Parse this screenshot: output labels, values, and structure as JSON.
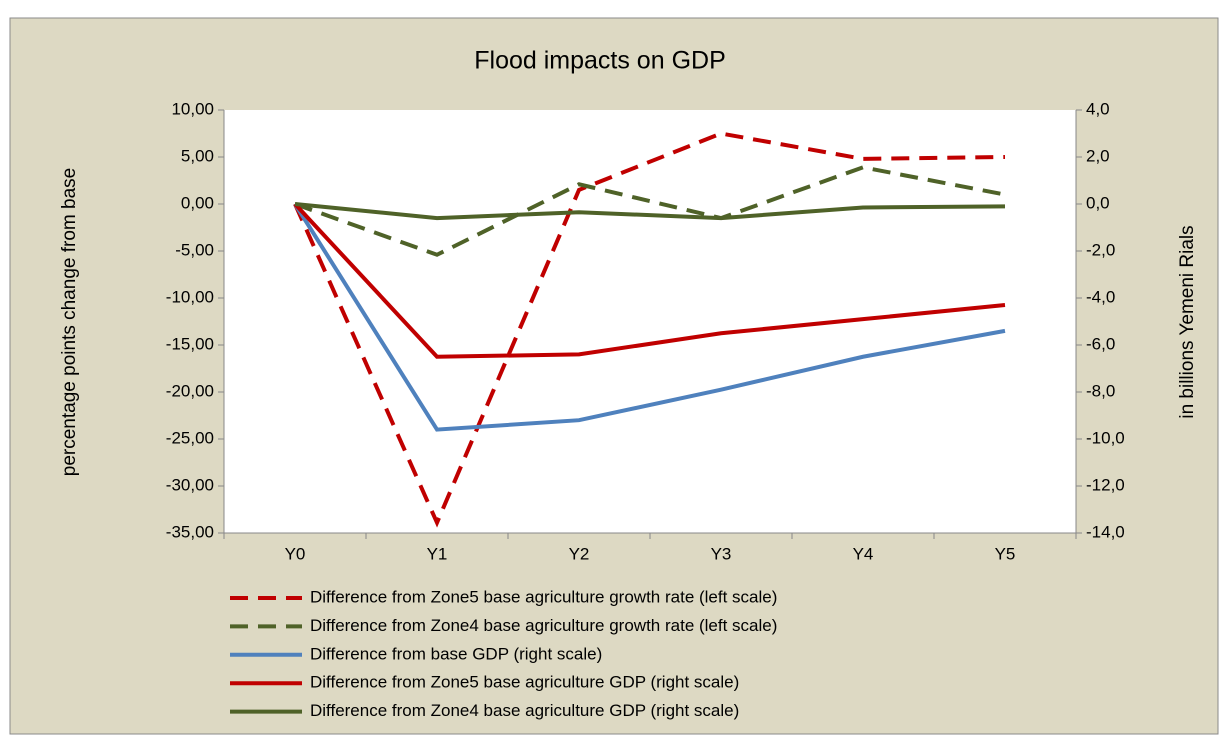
{
  "chart_data": {
    "type": "line",
    "title": "Flood impacts on GDP",
    "ylabel": "percentage points change from base",
    "y2label": "in billions Yemeni Rials",
    "categories": [
      "Y0",
      "Y1",
      "Y2",
      "Y3",
      "Y4",
      "Y5"
    ],
    "ylim": [
      -35,
      10
    ],
    "yticks": [
      {
        "value": 10,
        "label": "10,00"
      },
      {
        "value": 5,
        "label": "5,00"
      },
      {
        "value": 0,
        "label": "0,00"
      },
      {
        "value": -5,
        "label": "-5,00"
      },
      {
        "value": -10,
        "label": "-10,00"
      },
      {
        "value": -15,
        "label": "-15,00"
      },
      {
        "value": -20,
        "label": "-20,00"
      },
      {
        "value": -25,
        "label": "-25,00"
      },
      {
        "value": -30,
        "label": "-30,00"
      },
      {
        "value": -35,
        "label": "-35,00"
      }
    ],
    "y2lim": [
      -14,
      4
    ],
    "y2ticks": [
      {
        "value": 4,
        "label": "4,0"
      },
      {
        "value": 2,
        "label": "2,0"
      },
      {
        "value": 0,
        "label": "0,0"
      },
      {
        "value": -2,
        "label": "-2,0"
      },
      {
        "value": -4,
        "label": "-4,0"
      },
      {
        "value": -6,
        "label": "-6,0"
      },
      {
        "value": -8,
        "label": "-8,0"
      },
      {
        "value": -10,
        "label": "-10,0"
      },
      {
        "value": -12,
        "label": "-12,0"
      },
      {
        "value": -14,
        "label": "-14,0"
      }
    ],
    "series": [
      {
        "name": "Difference from Zone5 base agriculture growth rate (left scale)",
        "color": "#c00000",
        "dashed": true,
        "axis": "y",
        "values": [
          0,
          -33.9,
          1.5,
          7.5,
          4.8,
          5.0
        ]
      },
      {
        "name": "Difference from Zone4 base agriculture growth rate (left scale)",
        "color": "#4f6228",
        "dashed": true,
        "axis": "y",
        "values": [
          0,
          -5.4,
          2.1,
          -1.5,
          3.9,
          1.0
        ]
      },
      {
        "name": "Difference from base GDP (right scale)",
        "color": "#4f81bd",
        "dashed": false,
        "axis": "y2",
        "values": [
          0,
          -9.6,
          -9.2,
          -7.9,
          -6.5,
          -5.4
        ]
      },
      {
        "name": "Difference from Zone5 base agriculture GDP (right scale)",
        "color": "#c00000",
        "dashed": false,
        "axis": "y2",
        "values": [
          0,
          -6.5,
          -6.4,
          -5.5,
          -4.9,
          -4.3
        ]
      },
      {
        "name": "Difference from Zone4 base agriculture GDP (right scale)",
        "color": "#4f6228",
        "dashed": false,
        "axis": "y2",
        "values": [
          0,
          -0.6,
          -0.35,
          -0.6,
          -0.15,
          -0.1
        ]
      }
    ]
  }
}
